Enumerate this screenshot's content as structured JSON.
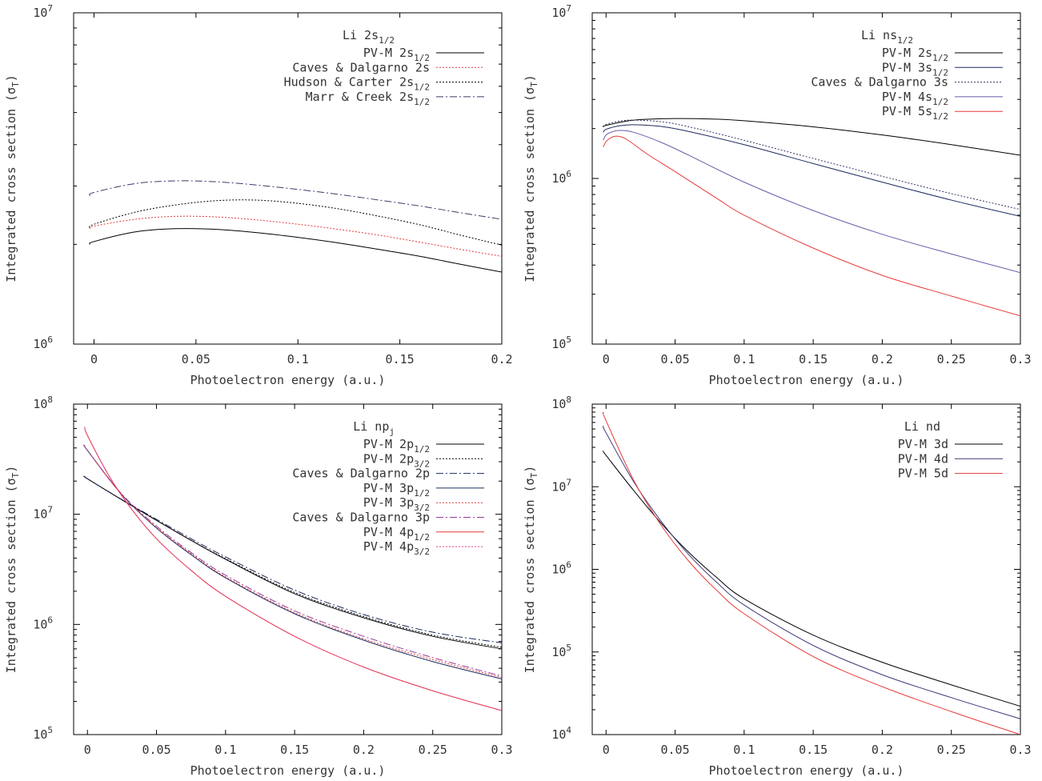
{
  "chart_data": [
    {
      "type": "line",
      "title": "Li 2s",
      "title_sub": "1/2",
      "xlabel": "Photoelectron energy (a.u.)",
      "ylabel": "Integrated cross section (σ",
      "ylabel_sub": "T",
      "ylabel_end": ")",
      "xlim": [
        -0.01,
        0.2
      ],
      "ylim": [
        1000000,
        10000000
      ],
      "yscale": "log",
      "xticks": [
        "0",
        "0.05",
        "0.1",
        "0.15",
        "0.2"
      ],
      "yticks": [
        {
          "base": "10",
          "exp": "6"
        },
        {
          "base": "10",
          "exp": "7"
        }
      ],
      "legend_position": "top-right",
      "series": [
        {
          "name": "PV-M 2s",
          "name_sub": "1/2",
          "color": "#000000",
          "dash": "solid",
          "x": [
            -0.002,
            0.0,
            0.02,
            0.04,
            0.06,
            0.08,
            0.1,
            0.12,
            0.14,
            0.16,
            0.18,
            0.2
          ],
          "y": [
            2000000,
            2040000,
            2180000,
            2230000,
            2220000,
            2170000,
            2100000,
            2020000,
            1930000,
            1840000,
            1740000,
            1650000
          ]
        },
        {
          "name": "Caves & Dalgarno 2s",
          "name_sub": "",
          "color": "#e03a3a",
          "dash": "dot",
          "x": [
            -0.002,
            0.0,
            0.02,
            0.04,
            0.06,
            0.08,
            0.1,
            0.12,
            0.14,
            0.16,
            0.18,
            0.2
          ],
          "y": [
            2230000,
            2270000,
            2380000,
            2430000,
            2420000,
            2370000,
            2300000,
            2220000,
            2130000,
            2030000,
            1930000,
            1840000
          ]
        },
        {
          "name": "Hudson & Carter 2s",
          "name_sub": "1/2",
          "color": "#000000",
          "dash": "dot",
          "x": [
            -0.002,
            0.0,
            0.02,
            0.04,
            0.06,
            0.08,
            0.1,
            0.12,
            0.14,
            0.16,
            0.18,
            0.2
          ],
          "y": [
            2250000,
            2300000,
            2500000,
            2630000,
            2710000,
            2720000,
            2660000,
            2560000,
            2430000,
            2290000,
            2130000,
            1990000
          ]
        },
        {
          "name": "Marr & Creek 2s",
          "name_sub": "1/2",
          "color": "#3a3a6a",
          "dash": "dashdot",
          "x": [
            -0.002,
            0.0,
            0.02,
            0.04,
            0.06,
            0.08,
            0.1,
            0.12,
            0.14,
            0.16,
            0.18,
            0.2
          ],
          "y": [
            2800000,
            2870000,
            3050000,
            3110000,
            3090000,
            3020000,
            2930000,
            2830000,
            2720000,
            2610000,
            2490000,
            2380000
          ]
        }
      ]
    },
    {
      "type": "line",
      "title": "Li ns",
      "title_sub": "1/2",
      "xlabel": "Photoelectron energy (a.u.)",
      "ylabel": "Integrated cross section (σ",
      "ylabel_sub": "T",
      "ylabel_end": ")",
      "xlim": [
        -0.01,
        0.3
      ],
      "ylim": [
        100000,
        10000000
      ],
      "yscale": "log",
      "xticks": [
        "0",
        "0.05",
        "0.1",
        "0.15",
        "0.2",
        "0.25",
        "0.3"
      ],
      "yticks": [
        {
          "base": "10",
          "exp": "5"
        },
        {
          "base": "10",
          "exp": "6"
        },
        {
          "base": "10",
          "exp": "7"
        }
      ],
      "legend_position": "top-right",
      "series": [
        {
          "name": "PV-M 2s",
          "name_sub": "1/2",
          "color": "#000000",
          "dash": "solid",
          "x": [
            -0.002,
            0.0,
            0.02,
            0.05,
            0.08,
            0.1,
            0.15,
            0.2,
            0.25,
            0.3
          ],
          "y": [
            2050000,
            2090000,
            2250000,
            2300000,
            2280000,
            2230000,
            2050000,
            1830000,
            1600000,
            1380000
          ]
        },
        {
          "name": "PV-M 3s",
          "name_sub": "1/2",
          "color": "#1c2a5e",
          "dash": "solid",
          "x": [
            -0.002,
            0.0,
            0.01,
            0.02,
            0.04,
            0.06,
            0.1,
            0.15,
            0.2,
            0.25,
            0.3
          ],
          "y": [
            1900000,
            1980000,
            2080000,
            2110000,
            2060000,
            1920000,
            1600000,
            1230000,
            950000,
            740000,
            590000
          ]
        },
        {
          "name": "Caves & Dalgarno 3s",
          "name_sub": "",
          "color": "#333366",
          "dash": "dot",
          "x": [
            -0.002,
            0.0,
            0.01,
            0.02,
            0.04,
            0.06,
            0.1,
            0.15,
            0.2,
            0.25,
            0.3
          ],
          "y": [
            2050000,
            2120000,
            2220000,
            2250000,
            2200000,
            2050000,
            1700000,
            1320000,
            1030000,
            810000,
            650000
          ]
        },
        {
          "name": "PV-M 4s",
          "name_sub": "1/2",
          "color": "#6a5aa8",
          "dash": "solid",
          "x": [
            -0.002,
            0.0,
            0.005,
            0.01,
            0.02,
            0.04,
            0.06,
            0.1,
            0.15,
            0.2,
            0.25,
            0.3
          ],
          "y": [
            1700000,
            1830000,
            1920000,
            1950000,
            1900000,
            1650000,
            1380000,
            950000,
            640000,
            460000,
            350000,
            270000
          ]
        },
        {
          "name": "PV-M 5s",
          "name_sub": "1/2",
          "color": "#e83a3a",
          "dash": "solid",
          "x": [
            -0.002,
            0.0,
            0.004,
            0.008,
            0.015,
            0.03,
            0.05,
            0.08,
            0.1,
            0.15,
            0.2,
            0.25,
            0.3
          ],
          "y": [
            1550000,
            1670000,
            1770000,
            1800000,
            1720000,
            1400000,
            1100000,
            760000,
            600000,
            380000,
            260000,
            195000,
            148000
          ]
        }
      ]
    },
    {
      "type": "line",
      "title": "Li np",
      "title_sub": "j",
      "xlabel": "Photoelectron energy (a.u.)",
      "ylabel": "Integrated cross section (σ",
      "ylabel_sub": "T",
      "ylabel_end": ")",
      "xlim": [
        -0.01,
        0.3
      ],
      "ylim": [
        100000,
        100000000
      ],
      "yscale": "log",
      "xticks": [
        "0",
        "0.05",
        "0.1",
        "0.15",
        "0.2",
        "0.25",
        "0.3"
      ],
      "yticks": [
        {
          "base": "10",
          "exp": "5"
        },
        {
          "base": "10",
          "exp": "6"
        },
        {
          "base": "10",
          "exp": "7"
        },
        {
          "base": "10",
          "exp": "8"
        }
      ],
      "legend_position": "top-right",
      "series": [
        {
          "name": "PV-M 2p",
          "name_sub": "1/2",
          "color": "#000000",
          "dash": "solid",
          "x": [
            -0.002,
            0.0,
            0.025,
            0.05,
            0.075,
            0.1,
            0.15,
            0.2,
            0.25,
            0.3
          ],
          "y": [
            22000000,
            21000000,
            13500000,
            8800000,
            5800000,
            3900000,
            1900000,
            1150000,
            780000,
            600000
          ]
        },
        {
          "name": "PV-M 2p",
          "name_sub": "3/2",
          "color": "#000000",
          "dash": "dot",
          "x": [
            -0.002,
            0.0,
            0.025,
            0.05,
            0.075,
            0.1,
            0.15,
            0.2,
            0.25,
            0.3
          ],
          "y": [
            22000000,
            21000000,
            13500000,
            8800000,
            5800000,
            3950000,
            1950000,
            1180000,
            800000,
            620000
          ]
        },
        {
          "name": "Caves & Dalgarno 2p",
          "name_sub": "",
          "color": "#1c2a5e",
          "dash": "dashdot",
          "x": [
            -0.002,
            0.0,
            0.025,
            0.05,
            0.075,
            0.1,
            0.15,
            0.2,
            0.25,
            0.3
          ],
          "y": [
            22000000,
            21000000,
            13600000,
            9000000,
            6000000,
            4100000,
            2050000,
            1230000,
            850000,
            680000
          ]
        },
        {
          "name": "PV-M 3p",
          "name_sub": "1/2",
          "color": "#1c2a5e",
          "dash": "solid",
          "x": [
            -0.002,
            0.0,
            0.025,
            0.05,
            0.075,
            0.1,
            0.15,
            0.2,
            0.25,
            0.3
          ],
          "y": [
            42000000,
            38000000,
            15000000,
            7500000,
            4300000,
            2650000,
            1250000,
            720000,
            460000,
            320000
          ]
        },
        {
          "name": "PV-M 3p",
          "name_sub": "3/2",
          "color": "#e03a3a",
          "dash": "dot",
          "x": [
            -0.002,
            0.0,
            0.025,
            0.05,
            0.075,
            0.1,
            0.15,
            0.2,
            0.25,
            0.3
          ],
          "y": [
            42000000,
            38000000,
            15000000,
            7600000,
            4400000,
            2700000,
            1280000,
            740000,
            480000,
            330000
          ]
        },
        {
          "name": "Caves & Dalgarno 3p",
          "name_sub": "",
          "color": "#9a3a9a",
          "dash": "dashdot",
          "x": [
            -0.002,
            0.0,
            0.025,
            0.05,
            0.075,
            0.1,
            0.15,
            0.2,
            0.25,
            0.3
          ],
          "y": [
            42000000,
            38000000,
            15200000,
            7800000,
            4500000,
            2800000,
            1330000,
            780000,
            500000,
            340000
          ]
        },
        {
          "name": "PV-M 4p",
          "name_sub": "1/2",
          "color": "#e83a3a",
          "dash": "solid",
          "x": [
            -0.002,
            0.0,
            0.015,
            0.03,
            0.05,
            0.075,
            0.1,
            0.15,
            0.2,
            0.25,
            0.3
          ],
          "y": [
            62000000,
            52000000,
            23000000,
            12000000,
            6000000,
            3100000,
            1800000,
            780000,
            410000,
            250000,
            165000
          ]
        },
        {
          "name": "PV-M 4p",
          "name_sub": "3/2",
          "color": "#e03a8a",
          "dash": "dot",
          "x": [
            -0.002,
            0.0,
            0.015,
            0.03,
            0.05,
            0.075,
            0.1,
            0.15,
            0.2,
            0.25,
            0.3
          ],
          "y": [
            62000000,
            52000000,
            23000000,
            12000000,
            6000000,
            3100000,
            1800000,
            780000,
            410000,
            250000,
            165000
          ]
        }
      ]
    },
    {
      "type": "line",
      "title": "Li nd",
      "title_sub": "",
      "xlabel": "Photoelectron energy (a.u.)",
      "ylabel": "Integrated cross section (σ",
      "ylabel_sub": "T",
      "ylabel_end": ")",
      "xlim": [
        -0.01,
        0.3
      ],
      "ylim": [
        10000,
        100000000
      ],
      "yscale": "log",
      "xticks": [
        "0",
        "0.05",
        "0.1",
        "0.15",
        "0.2",
        "0.25",
        "0.3"
      ],
      "yticks": [
        {
          "base": "10",
          "exp": "4"
        },
        {
          "base": "10",
          "exp": "5"
        },
        {
          "base": "10",
          "exp": "6"
        },
        {
          "base": "10",
          "exp": "7"
        },
        {
          "base": "10",
          "exp": "8"
        }
      ],
      "legend_position": "top-right",
      "series": [
        {
          "name": "PV-M 3d",
          "name_sub": "",
          "color": "#000000",
          "dash": "solid",
          "x": [
            -0.002,
            0.0,
            0.02,
            0.04,
            0.06,
            0.08,
            0.1,
            0.15,
            0.2,
            0.25,
            0.3
          ],
          "y": [
            27000000,
            24000000,
            9000000,
            3600000,
            1600000,
            800000,
            440000,
            160000,
            75000,
            40000,
            22000
          ]
        },
        {
          "name": "PV-M 4d",
          "name_sub": "",
          "color": "#3a3a7a",
          "dash": "solid",
          "x": [
            -0.002,
            0.0,
            0.02,
            0.04,
            0.06,
            0.08,
            0.1,
            0.15,
            0.2,
            0.25,
            0.3
          ],
          "y": [
            54000000,
            45000000,
            11500000,
            3800000,
            1500000,
            700000,
            370000,
            120000,
            53000,
            28000,
            15500
          ]
        },
        {
          "name": "PV-M 5d",
          "name_sub": "",
          "color": "#e83a3a",
          "dash": "solid",
          "x": [
            -0.002,
            0.0,
            0.02,
            0.04,
            0.06,
            0.08,
            0.1,
            0.15,
            0.2,
            0.25,
            0.3
          ],
          "y": [
            80000000,
            63000000,
            12000000,
            3400000,
            1250000,
            560000,
            290000,
            88000,
            38000,
            19000,
            10000
          ]
        }
      ]
    }
  ]
}
